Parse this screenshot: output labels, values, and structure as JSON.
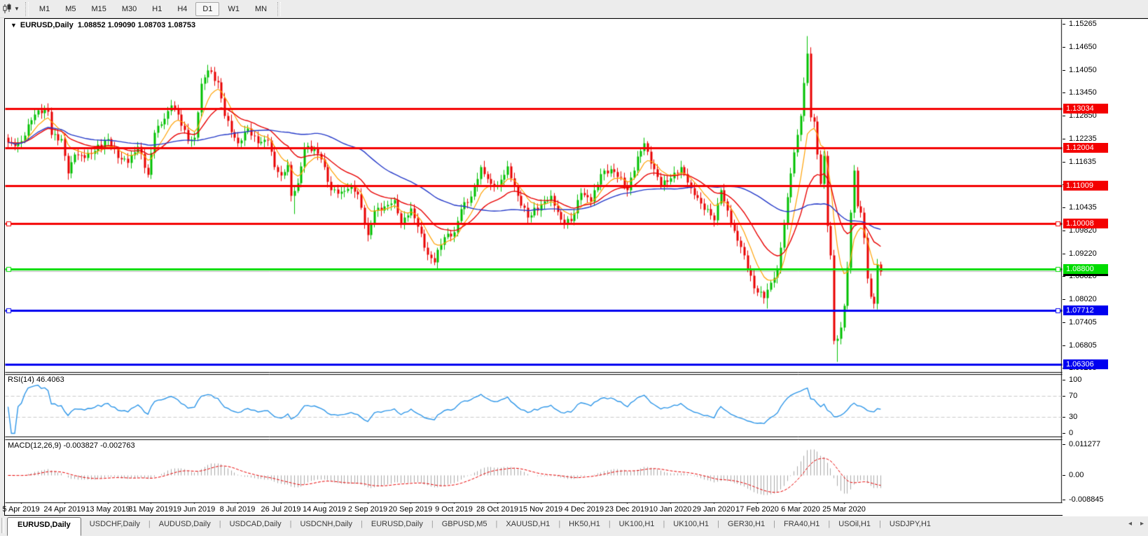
{
  "toolbar": {
    "chart_type_icon": "candlestick-chart-icon",
    "periods": [
      "M1",
      "M5",
      "M15",
      "M30",
      "H1",
      "H4",
      "D1",
      "W1",
      "MN"
    ],
    "active_period": "D1"
  },
  "chart": {
    "symbol": "EURUSD,Daily",
    "ohlc": "1.08852 1.09090 1.08703 1.08753",
    "dropdown_glyph": "▼"
  },
  "indicators": {
    "rsi": {
      "label": "RSI(14) 46.4063",
      "period": 14,
      "levels": [
        70,
        30
      ],
      "axis_ticks": [
        100,
        70,
        30,
        0
      ],
      "last": 46.4063
    },
    "macd": {
      "label": "MACD(12,26,9) -0.003827 -0.002763",
      "fast": 12,
      "slow": 26,
      "signal": 9,
      "axis_ticks": [
        "0.011277",
        "0.00",
        "-0.008845"
      ],
      "axis_values": [
        0.011277,
        0,
        -0.008845
      ],
      "last_macd": -0.003827,
      "last_signal": -0.002763
    }
  },
  "chart_data": {
    "type": "candlestick",
    "symbol": "EURUSD",
    "timeframe": "Daily",
    "bars_total": 263,
    "price_axis_ticks": [
      "1.15265",
      "1.14650",
      "1.14050",
      "1.13450",
      "1.12850",
      "1.12235",
      "1.11635",
      "1.11035",
      "1.10435",
      "1.09820",
      "1.09220",
      "1.08620",
      "1.08020",
      "1.07405",
      "1.06805",
      "1.06205"
    ],
    "x_labels": [
      "5 Apr 2019",
      "24 Apr 2019",
      "13 May 2019",
      "31 May 2019",
      "19 Jun 2019",
      "8 Jul 2019",
      "26 Jul 2019",
      "14 Aug 2019",
      "2 Sep 2019",
      "20 Sep 2019",
      "9 Oct 2019",
      "28 Oct 2019",
      "15 Nov 2019",
      "4 Dec 2019",
      "23 Dec 2019",
      "10 Jan 2020",
      "29 Jan 2020",
      "17 Feb 2020",
      "6 Mar 2020",
      "25 Mar 2020"
    ],
    "x_label_indices": [
      4,
      17,
      30,
      43,
      56,
      69,
      82,
      95,
      108,
      121,
      134,
      147,
      160,
      173,
      186,
      199,
      212,
      225,
      238,
      251
    ],
    "close_anchors": [
      [
        0,
        1.1215
      ],
      [
        2,
        1.1205
      ],
      [
        4,
        1.1218
      ],
      [
        7,
        1.1274
      ],
      [
        9,
        1.13
      ],
      [
        12,
        1.1295
      ],
      [
        13,
        1.1235
      ],
      [
        16,
        1.1224
      ],
      [
        18,
        1.1133
      ],
      [
        20,
        1.1184
      ],
      [
        23,
        1.1174
      ],
      [
        26,
        1.1193
      ],
      [
        30,
        1.1223
      ],
      [
        33,
        1.1175
      ],
      [
        36,
        1.1162
      ],
      [
        39,
        1.1204
      ],
      [
        42,
        1.113
      ],
      [
        44,
        1.1241
      ],
      [
        47,
        1.1277
      ],
      [
        49,
        1.1312
      ],
      [
        51,
        1.1288
      ],
      [
        54,
        1.1219
      ],
      [
        56,
        1.1227
      ],
      [
        58,
        1.1369
      ],
      [
        60,
        1.1404
      ],
      [
        63,
        1.1373
      ],
      [
        65,
        1.1285
      ],
      [
        68,
        1.1227
      ],
      [
        69,
        1.1213
      ],
      [
        72,
        1.1252
      ],
      [
        75,
        1.1212
      ],
      [
        78,
        1.1221
      ],
      [
        80,
        1.1151
      ],
      [
        82,
        1.1128
      ],
      [
        84,
        1.1155
      ],
      [
        85,
        1.1075
      ],
      [
        87,
        1.1108
      ],
      [
        89,
        1.12
      ],
      [
        92,
        1.1199
      ],
      [
        94,
        1.1171
      ],
      [
        97,
        1.109
      ],
      [
        100,
        1.1085
      ],
      [
        103,
        1.11
      ],
      [
        105,
        1.1078
      ],
      [
        108,
        1.0971
      ],
      [
        110,
        1.1035
      ],
      [
        113,
        1.1047
      ],
      [
        116,
        1.1063
      ],
      [
        118,
        1.1002
      ],
      [
        121,
        1.1042
      ],
      [
        123,
        1.0993
      ],
      [
        126,
        1.092
      ],
      [
        128,
        1.0899
      ],
      [
        129,
        1.0932
      ],
      [
        131,
        1.0966
      ],
      [
        134,
        1.0979
      ],
      [
        136,
        1.104
      ],
      [
        139,
        1.1073
      ],
      [
        142,
        1.115
      ],
      [
        145,
        1.1105
      ],
      [
        147,
        1.11
      ],
      [
        150,
        1.1152
      ],
      [
        153,
        1.1074
      ],
      [
        156,
        1.1018
      ],
      [
        160,
        1.1052
      ],
      [
        163,
        1.1074
      ],
      [
        166,
        1.1011
      ],
      [
        169,
        1.1008
      ],
      [
        172,
        1.1082
      ],
      [
        175,
        1.106
      ],
      [
        178,
        1.1131
      ],
      [
        181,
        1.1145
      ],
      [
        184,
        1.1122
      ],
      [
        186,
        1.1089
      ],
      [
        189,
        1.1177
      ],
      [
        191,
        1.1212
      ],
      [
        193,
        1.116
      ],
      [
        196,
        1.1103
      ],
      [
        199,
        1.1121
      ],
      [
        202,
        1.115
      ],
      [
        205,
        1.1095
      ],
      [
        208,
        1.1055
      ],
      [
        211,
        1.1022
      ],
      [
        212,
        1.101
      ],
      [
        214,
        1.1089
      ],
      [
        215,
        1.106
      ],
      [
        218,
        1.0983
      ],
      [
        221,
        1.0917
      ],
      [
        224,
        1.0831
      ],
      [
        227,
        1.0806
      ],
      [
        229,
        1.0846
      ],
      [
        231,
        1.0881
      ],
      [
        233,
        1.1
      ],
      [
        235,
        1.1134
      ],
      [
        238,
        1.1284
      ],
      [
        240,
        1.1449
      ],
      [
        241,
        1.1281
      ],
      [
        242,
        1.127
      ],
      [
        243,
        1.1184
      ],
      [
        244,
        1.1106
      ],
      [
        245,
        1.118
      ],
      [
        246,
        1.0995
      ],
      [
        247,
        1.0917
      ],
      [
        248,
        1.0692
      ],
      [
        249,
        1.0698
      ],
      [
        250,
        1.0727
      ],
      [
        251,
        1.0785
      ],
      [
        252,
        1.0885
      ],
      [
        253,
        1.103
      ],
      [
        254,
        1.1141
      ],
      [
        255,
        1.1047
      ],
      [
        256,
        1.103
      ],
      [
        257,
        1.0964
      ],
      [
        258,
        1.0856
      ],
      [
        259,
        1.0809
      ],
      [
        260,
        1.0791
      ],
      [
        261,
        1.0893
      ],
      [
        262,
        1.0875
      ]
    ],
    "wick_overrides": [
      [
        60,
        "h",
        1.1412
      ],
      [
        86,
        "l",
        1.1027
      ],
      [
        129,
        "l",
        1.0879
      ],
      [
        228,
        "l",
        1.0778
      ],
      [
        240,
        "h",
        1.1495
      ],
      [
        249,
        "l",
        1.0637
      ],
      [
        254,
        "h",
        1.1148
      ]
    ],
    "hlines": [
      {
        "price": 1.13034,
        "label": "1.13034",
        "color": "#f40000",
        "handles": false
      },
      {
        "price": 1.12004,
        "label": "1.12004",
        "color": "#f40000",
        "handles": false
      },
      {
        "price": 1.11009,
        "label": "1.11009",
        "color": "#f40000",
        "handles": false
      },
      {
        "price": 1.10008,
        "label": "1.10008",
        "color": "#f40000",
        "handles": true
      },
      {
        "price": 1.088,
        "label": "1.08800",
        "color": "#00dc00",
        "handles": true
      },
      {
        "price": 1.07712,
        "label": "1.07712",
        "color": "#0000f0",
        "handles": true
      },
      {
        "price": 1.06306,
        "label": "1.06306",
        "color": "#0000f0",
        "handles": false
      }
    ],
    "current_price": {
      "value": 1.08753,
      "label": "1.08753",
      "line_color": "#b8b8b8",
      "label_bg": "#000000"
    },
    "moving_averages": [
      {
        "period": 8,
        "color": "#ffa000",
        "name": "fast-ma"
      },
      {
        "period": 21,
        "color": "#e80000",
        "name": "mid-ma"
      },
      {
        "period": 50,
        "color": "#2338c8",
        "name": "slow-ma"
      }
    ],
    "colors": {
      "up": "#00c000",
      "down": "#e80000",
      "rsi": "#2e96e8",
      "rsi_level": "#c8c8c8",
      "macd_hist": "#a8a8a8",
      "macd_signal": "#e80000"
    }
  },
  "tabs": {
    "items": [
      "EURUSD,Daily",
      "USDCHF,Daily",
      "AUDUSD,Daily",
      "USDCAD,Daily",
      "USDCNH,Daily",
      "EURUSD,Daily",
      "GBPUSD,M5",
      "XAUUSD,H1",
      "HK50,H1",
      "UK100,H1",
      "UK100,H1",
      "GER30,H1",
      "FRA40,H1",
      "USOil,H1",
      "USDJPY,H1"
    ],
    "active_index": 0,
    "scroll_left_glyph": "◂",
    "scroll_right_glyph": "▸"
  }
}
